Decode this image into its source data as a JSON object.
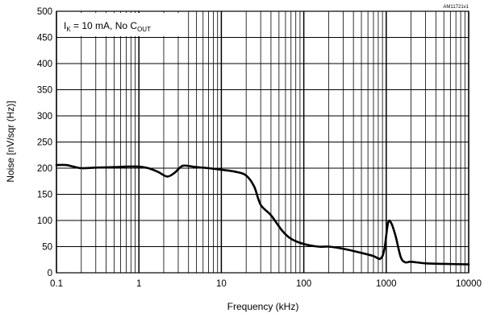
{
  "chart_data": {
    "type": "line",
    "xscale": "log",
    "xlim": [
      0.1,
      10000
    ],
    "ylim": [
      0,
      500
    ],
    "grid": true,
    "xlabel": "Frequency (kHz)",
    "ylabel": "Noise [nV/sqr (Hz)]",
    "x_ticks": [
      0.1,
      1,
      10,
      100,
      1000,
      10000
    ],
    "x_tick_labels": [
      "0.1",
      "1",
      "10",
      "100",
      "1000",
      "10000"
    ],
    "y_ticks": [
      0,
      50,
      100,
      150,
      200,
      250,
      300,
      350,
      400,
      450,
      500
    ],
    "y_tick_labels": [
      "0",
      "50",
      "100",
      "150",
      "200",
      "250",
      "300",
      "350",
      "400",
      "450",
      "500"
    ],
    "annotation": {
      "text_main": "I",
      "sub_k": "K",
      "text_mid": " = 10 mA,  No C",
      "sub_out": "OUT"
    },
    "figure_code": "AM11721v1",
    "series": [
      {
        "color": "#000000",
        "points": [
          [
            0.1,
            206
          ],
          [
            0.13,
            206
          ],
          [
            0.16,
            203
          ],
          [
            0.2,
            200
          ],
          [
            0.3,
            201
          ],
          [
            0.5,
            202
          ],
          [
            0.7,
            203
          ],
          [
            1.0,
            203
          ],
          [
            1.3,
            200
          ],
          [
            1.7,
            193
          ],
          [
            2.2,
            184
          ],
          [
            2.7,
            191
          ],
          [
            3.2,
            202
          ],
          [
            3.6,
            205
          ],
          [
            5,
            202
          ],
          [
            7,
            200
          ],
          [
            10,
            197
          ],
          [
            15,
            193
          ],
          [
            20,
            186
          ],
          [
            25,
            165
          ],
          [
            30,
            130
          ],
          [
            40,
            110
          ],
          [
            55,
            80
          ],
          [
            70,
            65
          ],
          [
            100,
            55
          ],
          [
            150,
            50
          ],
          [
            200,
            50
          ],
          [
            300,
            46
          ],
          [
            500,
            38
          ],
          [
            700,
            32
          ],
          [
            850,
            27
          ],
          [
            950,
            45
          ],
          [
            1050,
            95
          ],
          [
            1150,
            95
          ],
          [
            1300,
            70
          ],
          [
            1500,
            30
          ],
          [
            1700,
            20
          ],
          [
            2000,
            21
          ],
          [
            3000,
            18
          ],
          [
            5000,
            17
          ],
          [
            10000,
            16
          ]
        ]
      }
    ]
  }
}
